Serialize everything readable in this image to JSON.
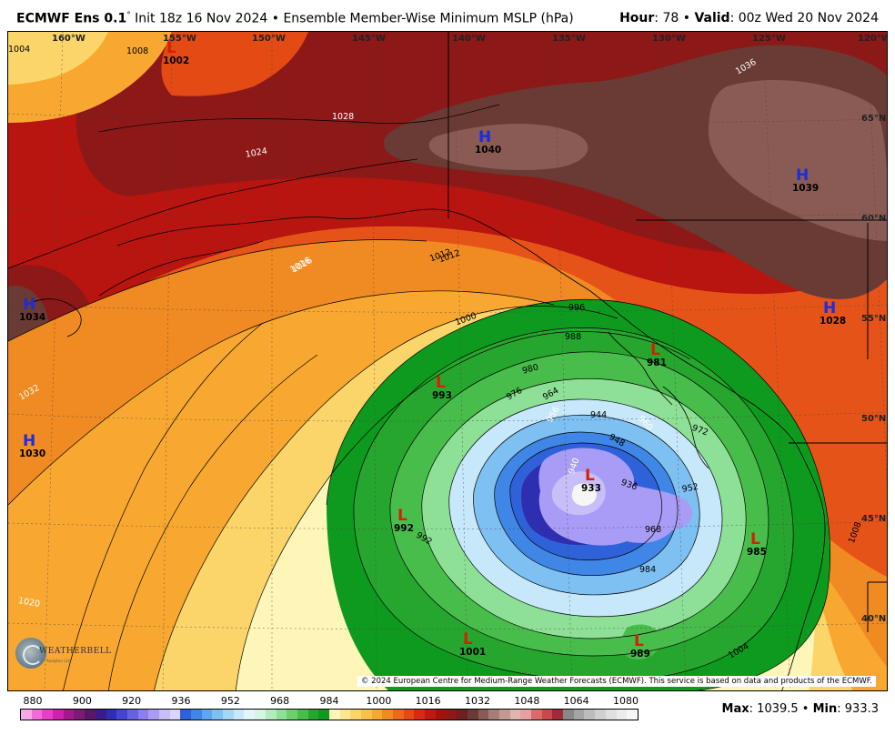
{
  "header": {
    "model": "ECMWF Ens 0.1",
    "degree": "°",
    "init": "Init 18z 16 Nov 2024",
    "bullet": "•",
    "product": "Ensemble Member-Wise Minimum MSLP (hPa)",
    "hour_label": "Hour",
    "hour_value": ": 78",
    "valid_label": "Valid",
    "valid_value": ": 00z Wed 20 Nov 2024"
  },
  "map": {
    "longitude_labels": [
      "160°W",
      "155°W",
      "150°W",
      "145°W",
      "140°W",
      "135°W",
      "130°W",
      "125°W",
      "120°W"
    ],
    "latitude_labels": [
      "65°N",
      "60°N",
      "55°N",
      "50°N",
      "45°N",
      "40°N"
    ],
    "pressure_centers": [
      {
        "type": "L",
        "value": "1002"
      },
      {
        "type": "H",
        "value": "1040"
      },
      {
        "type": "H",
        "value": "1039"
      },
      {
        "type": "H",
        "value": "1034"
      },
      {
        "type": "H",
        "value": "1030"
      },
      {
        "type": "H",
        "value": "1028"
      },
      {
        "type": "L",
        "value": "981"
      },
      {
        "type": "L",
        "value": "993"
      },
      {
        "type": "L",
        "value": "933"
      },
      {
        "type": "L",
        "value": "992"
      },
      {
        "type": "L",
        "value": "985"
      },
      {
        "type": "L",
        "value": "1001"
      },
      {
        "type": "L",
        "value": "989"
      }
    ],
    "isobar_labels": [
      "1004",
      "1008",
      "1012",
      "1016",
      "1020",
      "1024",
      "1028",
      "1032",
      "1036",
      "1000",
      "996",
      "988",
      "984",
      "980",
      "976",
      "972",
      "968",
      "964",
      "960",
      "956",
      "952",
      "948",
      "944",
      "940",
      "936",
      "992",
      "1008",
      "1012",
      "1016",
      "1004"
    ],
    "colors": {
      "low_center": "#d81e05",
      "high_center": "#1a2fd8"
    }
  },
  "colorbar": {
    "tick_labels": [
      "880",
      "900",
      "920",
      "936",
      "952",
      "968",
      "984",
      "1000",
      "1016",
      "1032",
      "1048",
      "1064",
      "1080"
    ],
    "swatch_colors": [
      "#f7a8e8",
      "#f06cd8",
      "#e640c6",
      "#cc22b0",
      "#a6178c",
      "#7d1a74",
      "#5a1668",
      "#3d1a8a",
      "#2d2fb0",
      "#4545d0",
      "#6464e0",
      "#8a7ef0",
      "#a89cf6",
      "#c8bef8",
      "#dcd4fb",
      "#2f62d8",
      "#3f86e6",
      "#5ea6ee",
      "#7ec0f2",
      "#a4d6f6",
      "#c6e8fa",
      "#e2f5fb",
      "#d4f5e4",
      "#b2ecbe",
      "#8ee096",
      "#6cd06e",
      "#48bd4c",
      "#26a62e",
      "#0e9a1e",
      "#fdf6b8",
      "#fce690",
      "#fbd56a",
      "#f9c04c",
      "#f8a830",
      "#f08a22",
      "#ec6a1a",
      "#e44a14",
      "#d82a10",
      "#c01a10",
      "#a01410",
      "#8c1818",
      "#70201c",
      "#6a3a34",
      "#8a5a54",
      "#a67e76",
      "#c29a92",
      "#deb6ae",
      "#e6a0a0",
      "#dc6a6a",
      "#c84a4a",
      "#a02a3a",
      "#888888",
      "#a4a4a4",
      "#bcbcbc",
      "#d0d0d0",
      "#e0e0e0",
      "#ececec",
      "#f6f6f6"
    ]
  },
  "footer": {
    "max_label": "Max",
    "max_value": ": 1039.5",
    "bullet": "•",
    "min_label": "Min",
    "min_value": ": 933.3",
    "copyright": "© 2024 European Centre for Medium-Range Weather Forecasts (ECMWF). This service is based on data and products of the ECMWF.",
    "logo_text": "WEATHERBELL",
    "logo_sub": "Analytics LLC"
  }
}
